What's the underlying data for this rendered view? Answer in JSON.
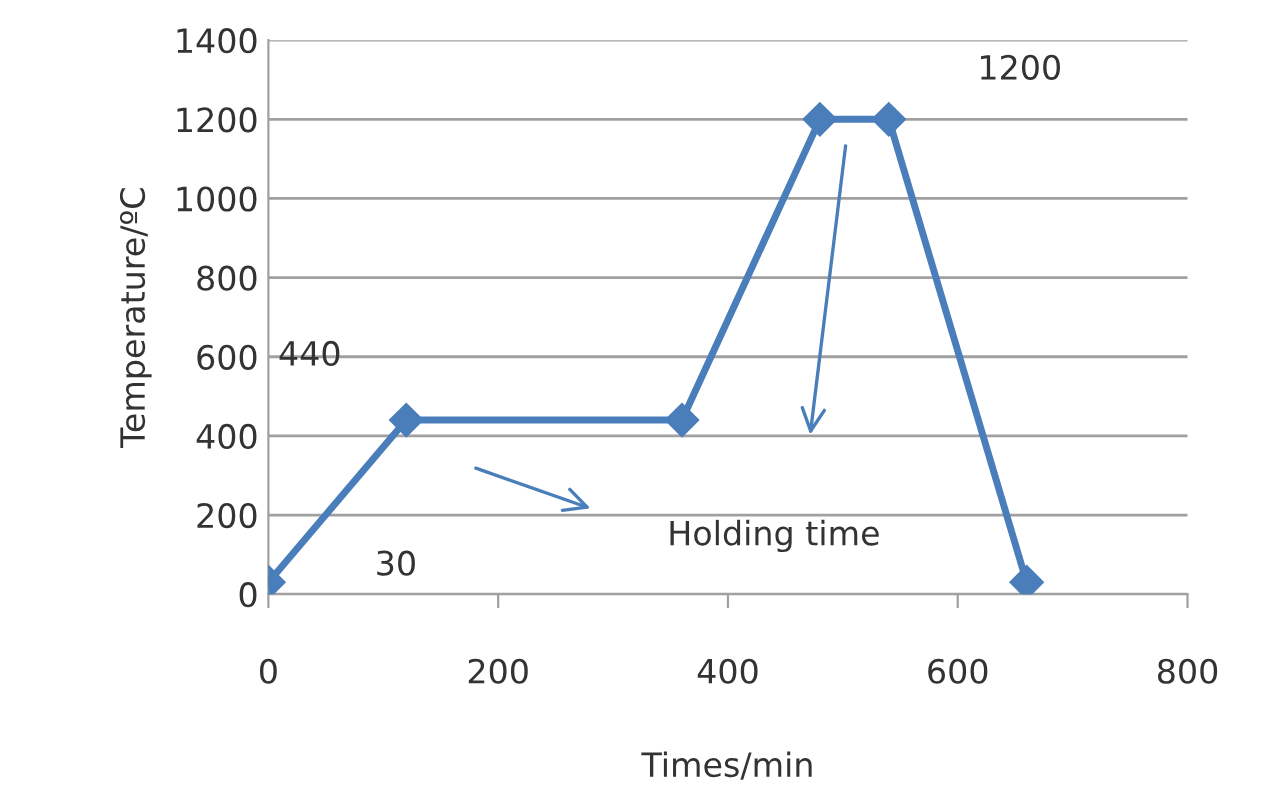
{
  "chart_data": {
    "type": "line",
    "x": [
      0,
      120,
      360,
      480,
      540,
      660
    ],
    "series": [
      {
        "color": "#4a7ebb",
        "values": [
          30,
          440,
          440,
          1200,
          1200,
          30
        ]
      }
    ],
    "xlabel": "Times/min",
    "ylabel": "Temperature/ºC",
    "xlim": [
      0,
      800
    ],
    "xticks": [
      0,
      200,
      400,
      600,
      800
    ],
    "ylim": [
      0,
      1400
    ],
    "yticks": [
      0,
      200,
      400,
      600,
      800,
      1000,
      1200,
      1400
    ],
    "grid": "y",
    "marker": "diamond",
    "line_style": "solid",
    "annotations": [
      "440",
      "30",
      "1200",
      "Holding time"
    ]
  }
}
